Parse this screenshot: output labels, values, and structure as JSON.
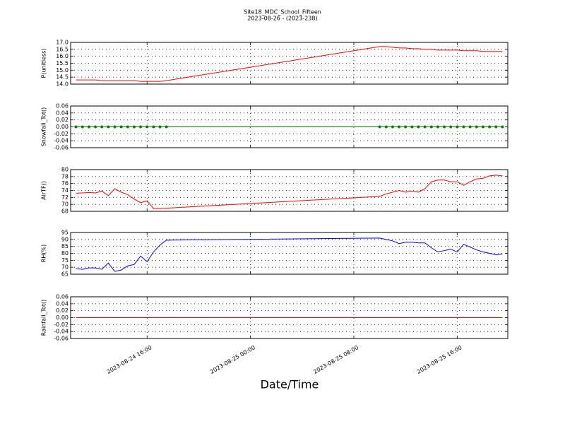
{
  "chart_data": [
    {
      "type": "line",
      "title": "Site18_MDC_School_Fifteen",
      "subtitle": "2023-08-26 - (2023-238)",
      "ylabel": "P(unitless)",
      "x": [
        "2023-08-24 10:30",
        "2023-08-24 11:00",
        "2023-08-24 11:30",
        "2023-08-24 12:00",
        "2023-08-24 12:30",
        "2023-08-24 13:00",
        "2023-08-24 13:30",
        "2023-08-24 14:00",
        "2023-08-24 14:30",
        "2023-08-24 15:00",
        "2023-08-24 15:30",
        "2023-08-24 16:00",
        "2023-08-24 16:30",
        "2023-08-24 17:00",
        "2023-08-24 17:30",
        "2023-08-25 10:00",
        "2023-08-25 10:30",
        "2023-08-25 11:00",
        "2023-08-25 11:30",
        "2023-08-25 12:00",
        "2023-08-25 12:30",
        "2023-08-25 13:00",
        "2023-08-25 13:30",
        "2023-08-25 14:00",
        "2023-08-25 14:30",
        "2023-08-25 15:00",
        "2023-08-25 15:30",
        "2023-08-25 16:00",
        "2023-08-25 16:30",
        "2023-08-25 17:00",
        "2023-08-25 17:30",
        "2023-08-25 18:00",
        "2023-08-25 18:30",
        "2023-08-25 19:00",
        "2023-08-25 19:30"
      ],
      "series": [
        {
          "color": "#ff0000",
          "values": [
            14.3,
            14.3,
            14.3,
            14.3,
            14.25,
            14.25,
            14.25,
            14.25,
            14.25,
            14.25,
            14.2,
            14.2,
            14.2,
            14.2,
            14.25,
            16.7,
            16.7,
            16.65,
            16.6,
            16.6,
            16.55,
            16.55,
            16.5,
            16.5,
            16.45,
            16.45,
            16.45,
            16.45,
            16.4,
            16.4,
            16.4,
            16.35,
            16.35,
            16.35,
            16.35
          ]
        }
      ],
      "xlim": [
        "2023-08-24 10:05",
        "2023-08-25 19:55"
      ],
      "ylim": [
        14.0,
        17.0
      ],
      "yticks": [
        {
          "value": 14,
          "label": "14.0"
        },
        14.5,
        {
          "value": 15,
          "label": "15.0"
        },
        15.5,
        {
          "value": 16,
          "label": "16.0"
        },
        16.5,
        {
          "value": 17,
          "label": "17.0"
        }
      ],
      "grid": true
    },
    {
      "type": "line",
      "ylabel": "Snowfall_Tot()",
      "marker": "o",
      "x": [
        "2023-08-24 10:30",
        "2023-08-24 11:00",
        "2023-08-24 11:30",
        "2023-08-24 12:00",
        "2023-08-24 12:30",
        "2023-08-24 13:00",
        "2023-08-24 13:30",
        "2023-08-24 14:00",
        "2023-08-24 14:30",
        "2023-08-24 15:00",
        "2023-08-24 15:30",
        "2023-08-24 16:00",
        "2023-08-24 16:30",
        "2023-08-24 17:00",
        "2023-08-24 17:30",
        "2023-08-25 10:00",
        "2023-08-25 10:30",
        "2023-08-25 11:00",
        "2023-08-25 11:30",
        "2023-08-25 12:00",
        "2023-08-25 12:30",
        "2023-08-25 13:00",
        "2023-08-25 13:30",
        "2023-08-25 14:00",
        "2023-08-25 14:30",
        "2023-08-25 15:00",
        "2023-08-25 15:30",
        "2023-08-25 16:00",
        "2023-08-25 16:30",
        "2023-08-25 17:00",
        "2023-08-25 17:30",
        "2023-08-25 18:00",
        "2023-08-25 18:30",
        "2023-08-25 19:00",
        "2023-08-25 19:30"
      ],
      "series": [
        {
          "color": "#008000",
          "values": [
            0,
            0,
            0,
            0,
            0,
            0,
            0,
            0,
            0,
            0,
            0,
            0,
            0,
            0,
            0,
            0,
            0,
            0,
            0,
            0,
            0,
            0,
            0,
            0,
            0,
            0,
            0,
            0,
            0,
            0,
            0,
            0,
            0,
            0,
            0
          ]
        }
      ],
      "xlim": [
        "2023-08-24 10:05",
        "2023-08-25 19:55"
      ],
      "ylim": [
        -0.06,
        0.06
      ],
      "yticks": [
        -0.06,
        -0.04,
        -0.02,
        {
          "value": 0,
          "label": "0.00"
        },
        0.02,
        0.04,
        0.06
      ],
      "grid": true
    },
    {
      "type": "line",
      "ylabel": "AirTF()",
      "x": [
        "2023-08-24 10:30",
        "2023-08-24 11:00",
        "2023-08-24 11:30",
        "2023-08-24 12:00",
        "2023-08-24 12:30",
        "2023-08-24 13:00",
        "2023-08-24 13:30",
        "2023-08-24 14:00",
        "2023-08-24 14:30",
        "2023-08-24 15:00",
        "2023-08-24 15:30",
        "2023-08-24 16:00",
        "2023-08-24 16:30",
        "2023-08-24 17:00",
        "2023-08-24 17:30",
        "2023-08-25 10:00",
        "2023-08-25 10:30",
        "2023-08-25 11:00",
        "2023-08-25 11:30",
        "2023-08-25 12:00",
        "2023-08-25 12:30",
        "2023-08-25 13:00",
        "2023-08-25 13:30",
        "2023-08-25 14:00",
        "2023-08-25 14:30",
        "2023-08-25 15:00",
        "2023-08-25 15:30",
        "2023-08-25 16:00",
        "2023-08-25 16:30",
        "2023-08-25 17:00",
        "2023-08-25 17:30",
        "2023-08-25 18:00",
        "2023-08-25 18:30",
        "2023-08-25 19:00",
        "2023-08-25 19:30"
      ],
      "series": [
        {
          "color": "#ff0000",
          "values": [
            73.2,
            73.3,
            73.4,
            73.3,
            73.8,
            72.5,
            74.5,
            73.5,
            72.8,
            71.5,
            70.5,
            71,
            68.8,
            68.8,
            68.9,
            72.3,
            73,
            73.5,
            74,
            73.5,
            73.8,
            73.5,
            74.5,
            76.5,
            77,
            77,
            76.5,
            76.5,
            75.5,
            76.5,
            77.3,
            77.5,
            78.2,
            78.4,
            78.2
          ]
        }
      ],
      "xlim": [
        "2023-08-24 10:05",
        "2023-08-25 19:55"
      ],
      "ylim": [
        68,
        80
      ],
      "yticks": [
        68,
        70,
        72,
        74,
        76,
        78,
        80
      ],
      "grid": true
    },
    {
      "type": "line",
      "ylabel": "RH(%)",
      "x": [
        "2023-08-24 10:30",
        "2023-08-24 11:00",
        "2023-08-24 11:30",
        "2023-08-24 12:00",
        "2023-08-24 12:30",
        "2023-08-24 13:00",
        "2023-08-24 13:30",
        "2023-08-24 14:00",
        "2023-08-24 14:30",
        "2023-08-24 15:00",
        "2023-08-24 15:30",
        "2023-08-24 16:00",
        "2023-08-24 16:30",
        "2023-08-24 17:00",
        "2023-08-24 17:30",
        "2023-08-25 10:00",
        "2023-08-25 10:30",
        "2023-08-25 11:00",
        "2023-08-25 11:30",
        "2023-08-25 12:00",
        "2023-08-25 12:30",
        "2023-08-25 13:00",
        "2023-08-25 13:30",
        "2023-08-25 14:00",
        "2023-08-25 14:30",
        "2023-08-25 15:00",
        "2023-08-25 15:30",
        "2023-08-25 16:00",
        "2023-08-25 16:30",
        "2023-08-25 17:00",
        "2023-08-25 17:30",
        "2023-08-25 18:00",
        "2023-08-25 18:30",
        "2023-08-25 19:00",
        "2023-08-25 19:30"
      ],
      "series": [
        {
          "color": "#0000ff",
          "values": [
            69,
            68.5,
            69.5,
            69.5,
            68.5,
            73,
            67,
            68,
            71,
            72,
            78,
            74,
            81,
            86,
            89.5,
            91,
            90,
            89,
            87,
            88,
            88,
            87.5,
            87.5,
            84,
            81,
            82,
            83,
            81,
            86.5,
            84.5,
            82.5,
            81,
            80,
            79,
            79.5
          ]
        }
      ],
      "xlim": [
        "2023-08-24 10:05",
        "2023-08-25 19:55"
      ],
      "ylim": [
        65,
        95
      ],
      "yticks": [
        65,
        70,
        75,
        80,
        85,
        90,
        95
      ],
      "grid": true
    },
    {
      "type": "line",
      "ylabel": "Rainfall_Tot()",
      "xlabel": "Date/Time",
      "x": [
        "2023-08-24 10:30",
        "2023-08-24 11:00",
        "2023-08-24 11:30",
        "2023-08-24 12:00",
        "2023-08-24 12:30",
        "2023-08-24 13:00",
        "2023-08-24 13:30",
        "2023-08-24 14:00",
        "2023-08-24 14:30",
        "2023-08-24 15:00",
        "2023-08-24 15:30",
        "2023-08-24 16:00",
        "2023-08-24 16:30",
        "2023-08-24 17:00",
        "2023-08-24 17:30",
        "2023-08-25 10:00",
        "2023-08-25 10:30",
        "2023-08-25 11:00",
        "2023-08-25 11:30",
        "2023-08-25 12:00",
        "2023-08-25 12:30",
        "2023-08-25 13:00",
        "2023-08-25 13:30",
        "2023-08-25 14:00",
        "2023-08-25 14:30",
        "2023-08-25 15:00",
        "2023-08-25 15:30",
        "2023-08-25 16:00",
        "2023-08-25 16:30",
        "2023-08-25 17:00",
        "2023-08-25 17:30",
        "2023-08-25 18:00",
        "2023-08-25 18:30",
        "2023-08-25 19:00",
        "2023-08-25 19:30"
      ],
      "series": [
        {
          "color": "#ff0000",
          "values": [
            0,
            0,
            0,
            0,
            0,
            0,
            0,
            0,
            0,
            0,
            0,
            0,
            0,
            0,
            0,
            0,
            0,
            0,
            0,
            0,
            0,
            0,
            0,
            0,
            0,
            0,
            0,
            0,
            0,
            0,
            0,
            0,
            0,
            0,
            0
          ]
        }
      ],
      "xlim": [
        "2023-08-24 10:05",
        "2023-08-25 19:55"
      ],
      "ylim": [
        -0.06,
        0.06
      ],
      "yticks": [
        -0.06,
        -0.04,
        -0.02,
        {
          "value": 0,
          "label": "0.00"
        },
        0.02,
        0.04,
        0.06
      ],
      "xticks": [
        "2023-08-24 16:00",
        "2023-08-25 00:00",
        "2023-08-25 08:00",
        "2023-08-25 16:00"
      ],
      "grid": true
    }
  ]
}
